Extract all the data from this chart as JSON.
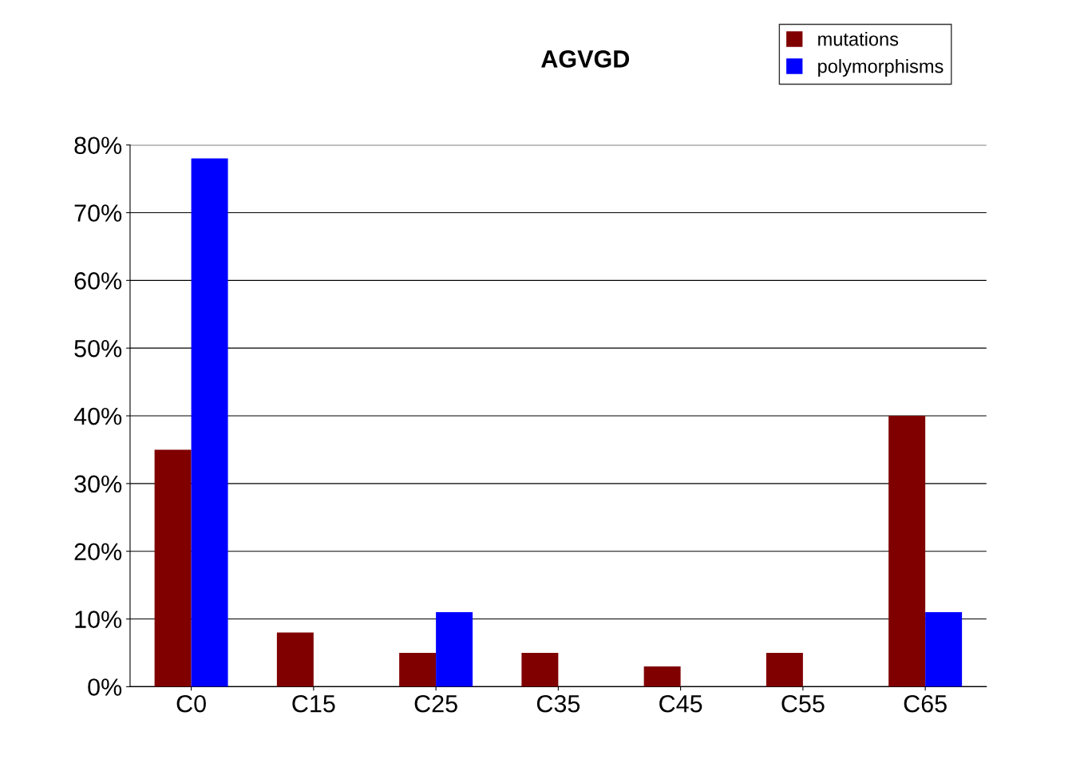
{
  "chart_data": {
    "type": "bar",
    "title": "AGVGD",
    "categories": [
      "C0",
      "C15",
      "C25",
      "C35",
      "C45",
      "C55",
      "C65"
    ],
    "series": [
      {
        "name": "mutations",
        "color": "#800000",
        "values": [
          35,
          8,
          5,
          5,
          3,
          5,
          40
        ]
      },
      {
        "name": "polymorphisms",
        "color": "#0000ff",
        "values": [
          78,
          0,
          11,
          0,
          0,
          0,
          11
        ]
      }
    ],
    "ylim": [
      0,
      80
    ],
    "yticks": [
      {
        "value": 0,
        "label": "0%"
      },
      {
        "value": 10,
        "label": "10%"
      },
      {
        "value": 20,
        "label": "20%"
      },
      {
        "value": 30,
        "label": "30%"
      },
      {
        "value": 40,
        "label": "40%"
      },
      {
        "value": 50,
        "label": "50%"
      },
      {
        "value": 60,
        "label": "60%"
      },
      {
        "value": 70,
        "label": "70%"
      },
      {
        "value": 80,
        "label": "80%"
      }
    ],
    "grid": "y",
    "legend": "top right"
  }
}
